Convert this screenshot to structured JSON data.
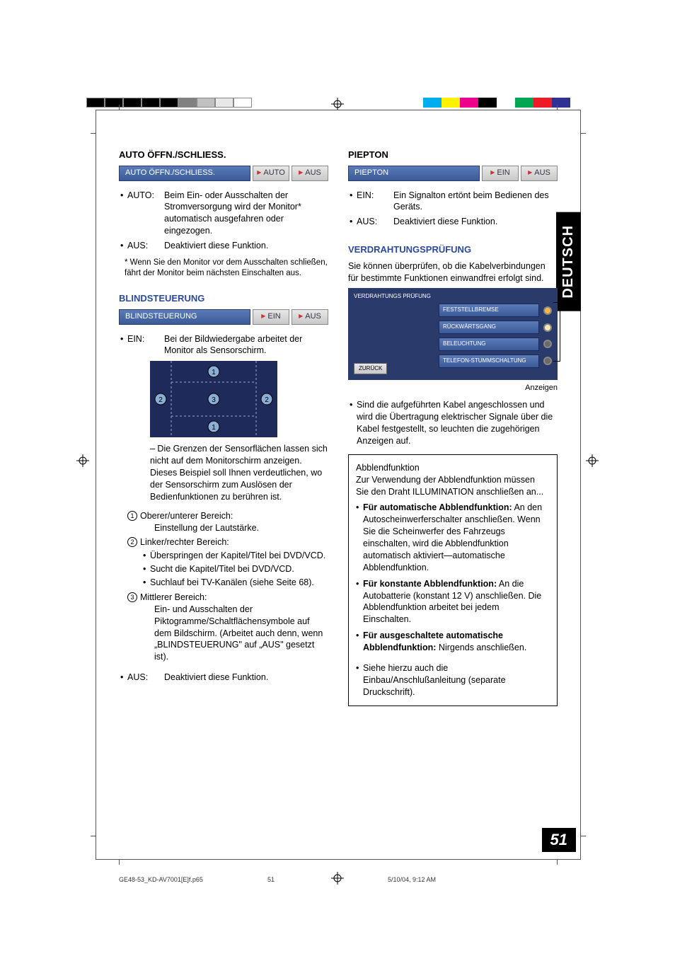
{
  "printmarks": {
    "left_colors": [
      "#000000",
      "#000000",
      "#000000",
      "#000000",
      "#000000",
      "#808080",
      "#c0c0c0",
      "#e8e8e8",
      "#ffffff"
    ],
    "right_colors": [
      "#00aeef",
      "#fff200",
      "#ec008c",
      "#000000",
      "#ffffff",
      "#00a651",
      "#ed1c24",
      "#2e3192",
      "#ffffff"
    ]
  },
  "side_tab": "DEUTSCH",
  "page_number": "51",
  "footer": {
    "file": "GE48-53_KD-AV7001[E]f.p65",
    "page": "51",
    "timestamp": "5/10/04, 9:12 AM"
  },
  "left": {
    "auto": {
      "heading": "AUTO ÖFFN./SCHLIESS.",
      "ui_label": "AUTO ÖFFN./SCHLIESS.",
      "ui_btn1": "AUTO",
      "ui_btn2": "AUS",
      "items": [
        {
          "k": "AUTO:",
          "v": "Beim Ein- oder Ausschalten der Stromversorgung wird der Monitor* automatisch ausgefahren oder eingezogen."
        },
        {
          "k": "AUS:",
          "v": "Deaktiviert diese Funktion."
        }
      ],
      "footnote": "* Wenn Sie den Monitor vor dem Ausschalten schließen, fährt der Monitor beim nächsten Einschalten aus."
    },
    "blind": {
      "heading": "BLINDSTEUERUNG",
      "ui_label": "BLINDSTEUERUNG",
      "ui_btn1": "EIN",
      "ui_btn2": "AUS",
      "ein_item": {
        "k": "EIN:",
        "v": "Bei der Bildwiedergabe arbeitet der Monitor als Sensorschirm."
      },
      "diagram_note": "– Die Grenzen der Sensorflächen lassen sich nicht auf dem Monitorschirm anzeigen. Dieses Beispiel soll Ihnen verdeutlichen, wo der Sensorschirm zum Auslösen der Bedienfunktionen zu berühren ist.",
      "areas": [
        {
          "n": "1",
          "t": "Oberer/unterer Bereich:",
          "sub": "Einstellung der Lautstärke."
        },
        {
          "n": "2",
          "t": "Linker/rechter Bereich:",
          "bullets": [
            "Überspringen der Kapitel/Titel bei DVD/VCD.",
            "Sucht die Kapitel/Titel bei DVD/VCD.",
            "Suchlauf bei TV-Kanälen (siehe Seite 68)."
          ]
        },
        {
          "n": "3",
          "t": "Mittlerer Bereich:",
          "sub": "Ein- und Ausschalten der Piktogramme/Schaltflächensymbole auf dem Bildschirm. (Arbeitet auch denn, wenn „BLINDSTEUERUNG\" auf „AUS\" gesetzt ist)."
        }
      ],
      "aus_item": {
        "k": "AUS:",
        "v": "Deaktiviert diese Funktion."
      }
    }
  },
  "right": {
    "piep": {
      "heading": "PIEPTON",
      "ui_label": "PIEPTON",
      "ui_btn1": "EIN",
      "ui_btn2": "AUS",
      "items": [
        {
          "k": "EIN:",
          "v": "Ein Signalton ertönt beim Bedienen des Geräts."
        },
        {
          "k": "AUS:",
          "v": "Deaktiviert diese Funktion."
        }
      ]
    },
    "wiring": {
      "heading": "VERDRAHTUNGSPRÜFUNG",
      "intro": "Sie können überprüfen, ob die Kabelverbindungen für bestimmte Funktionen einwandfrei erfolgt sind.",
      "panel_header": "VERDRAHTUNGS PRÜFUNG",
      "back": "ZURÜCK",
      "rows": [
        {
          "lbl": "FESTSTELLBREMSE",
          "led": "#f7b54a"
        },
        {
          "lbl": "RÜCKWÄRTSGANG",
          "led": "#f7e8b0"
        },
        {
          "lbl": "BELEUCHTUNG",
          "led": "#6a6a6a"
        },
        {
          "lbl": "TELEFON-STUMMSCHALTUNG",
          "led": "#6a6a6a"
        }
      ],
      "anzeigen": "Anzeigen",
      "note": "Sind die aufgeführten Kabel angeschlossen und wird die Übertragung elektrischer Signale über die Kabel festgestellt, so leuchten die zugehörigen Anzeigen auf."
    },
    "box": {
      "title": "Abblendfunktion",
      "intro": "Zur Verwendung der Abblendfunktion müssen Sie den Draht ILLUMINATION anschließen an...",
      "items": [
        {
          "b": "Für automatische Abblendfunktion:",
          "t": " An den Autoscheinwerferschalter anschließen. Wenn Sie die Scheinwerfer des Fahrzeugs einschalten, wird die Abblendfunktion automatisch aktiviert—automatische Abblendfunktion."
        },
        {
          "b": "Für konstante Abblendfunktion:",
          "t": " An die Autobatterie (konstant 12 V) anschließen. Die Abblendfunktion arbeitet bei jedem Einschalten."
        },
        {
          "b": "Für ausgeschaltete automatische Abblendfunktion:",
          "t": " Nirgends anschließen."
        }
      ],
      "tail": "Siehe hierzu auch die Einbau/Anschlußanleitung (separate Druckschrift)."
    }
  },
  "sensor": {
    "bg": "#1e2a5a",
    "line": "#9aa7d0",
    "circle_fill": "#8aaed6",
    "circle_stroke": "#000"
  }
}
